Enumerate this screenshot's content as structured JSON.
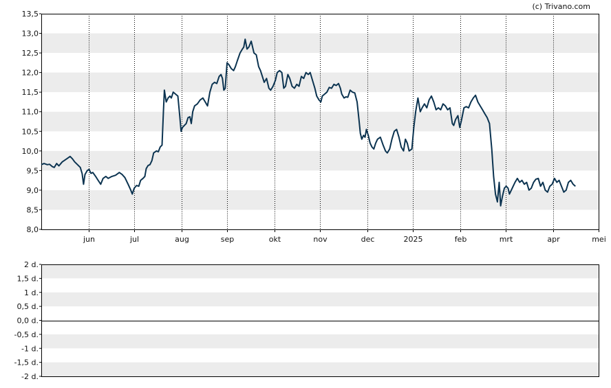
{
  "credit": "(c) Trivano.com",
  "chart_data": [
    {
      "type": "line",
      "title": "",
      "xlabel": "",
      "ylabel": "",
      "ylim": [
        8.0,
        13.5
      ],
      "y_ticks": [
        "8,0",
        "8,5",
        "9,0",
        "9,5",
        "10,0",
        "10,5",
        "11,0",
        "11,5",
        "12,0",
        "12,5",
        "13,0",
        "13,5"
      ],
      "x_ticks": [
        "jun",
        "jul",
        "aug",
        "sep",
        "okt",
        "nov",
        "dec",
        "2025",
        "feb",
        "mrt",
        "apr",
        "mei"
      ],
      "x_ticks_pos": [
        6.02,
        7.0,
        8.02,
        9.0,
        10.02,
        11.0,
        12.02,
        13.0,
        14.02,
        15.0,
        16.02,
        17.0
      ],
      "xlim": [
        5.0,
        17.0
      ],
      "grid": "alternating horizontal bands, dotted vertical lines at month ticks",
      "line_color": "#0b3350",
      "series": [
        {
          "values": [
            [
              5.0,
              9.65
            ],
            [
              5.06,
              9.68
            ],
            [
              5.13,
              9.65
            ],
            [
              5.18,
              9.66
            ],
            [
              5.24,
              9.6
            ],
            [
              5.28,
              9.58
            ],
            [
              5.33,
              9.68
            ],
            [
              5.38,
              9.62
            ],
            [
              5.45,
              9.72
            ],
            [
              5.55,
              9.8
            ],
            [
              5.62,
              9.86
            ],
            [
              5.67,
              9.8
            ],
            [
              5.72,
              9.72
            ],
            [
              5.78,
              9.65
            ],
            [
              5.84,
              9.58
            ],
            [
              5.88,
              9.42
            ],
            [
              5.91,
              9.15
            ],
            [
              5.94,
              9.4
            ],
            [
              5.99,
              9.5
            ],
            [
              6.03,
              9.53
            ],
            [
              6.07,
              9.43
            ],
            [
              6.11,
              9.45
            ],
            [
              6.17,
              9.35
            ],
            [
              6.22,
              9.26
            ],
            [
              6.28,
              9.15
            ],
            [
              6.33,
              9.3
            ],
            [
              6.39,
              9.35
            ],
            [
              6.44,
              9.3
            ],
            [
              6.52,
              9.35
            ],
            [
              6.6,
              9.38
            ],
            [
              6.68,
              9.45
            ],
            [
              6.74,
              9.4
            ],
            [
              6.8,
              9.32
            ],
            [
              6.87,
              9.15
            ],
            [
              6.92,
              9.02
            ],
            [
              6.96,
              8.9
            ],
            [
              7.0,
              9.05
            ],
            [
              7.05,
              9.12
            ],
            [
              7.1,
              9.1
            ],
            [
              7.14,
              9.25
            ],
            [
              7.19,
              9.3
            ],
            [
              7.23,
              9.35
            ],
            [
              7.26,
              9.55
            ],
            [
              7.3,
              9.63
            ],
            [
              7.34,
              9.65
            ],
            [
              7.38,
              9.75
            ],
            [
              7.42,
              9.95
            ],
            [
              7.48,
              10.0
            ],
            [
              7.52,
              9.98
            ],
            [
              7.56,
              10.1
            ],
            [
              7.6,
              10.15
            ],
            [
              7.63,
              11.0
            ],
            [
              7.65,
              11.55
            ],
            [
              7.69,
              11.25
            ],
            [
              7.73,
              11.35
            ],
            [
              7.77,
              11.4
            ],
            [
              7.8,
              11.35
            ],
            [
              7.84,
              11.5
            ],
            [
              7.89,
              11.45
            ],
            [
              7.94,
              11.4
            ],
            [
              7.98,
              10.9
            ],
            [
              8.01,
              10.5
            ],
            [
              8.04,
              10.6
            ],
            [
              8.08,
              10.65
            ],
            [
              8.12,
              10.7
            ],
            [
              8.16,
              10.85
            ],
            [
              8.2,
              10.87
            ],
            [
              8.23,
              10.7
            ],
            [
              8.26,
              11.0
            ],
            [
              8.3,
              11.15
            ],
            [
              8.36,
              11.2
            ],
            [
              8.42,
              11.3
            ],
            [
              8.48,
              11.35
            ],
            [
              8.53,
              11.25
            ],
            [
              8.58,
              11.15
            ],
            [
              8.63,
              11.5
            ],
            [
              8.68,
              11.7
            ],
            [
              8.73,
              11.75
            ],
            [
              8.78,
              11.72
            ],
            [
              8.83,
              11.9
            ],
            [
              8.87,
              11.95
            ],
            [
              8.9,
              11.85
            ],
            [
              8.93,
              11.55
            ],
            [
              8.96,
              11.6
            ],
            [
              9.0,
              12.25
            ],
            [
              9.04,
              12.2
            ],
            [
              9.09,
              12.1
            ],
            [
              9.14,
              12.05
            ],
            [
              9.18,
              12.15
            ],
            [
              9.22,
              12.3
            ],
            [
              9.28,
              12.5
            ],
            [
              9.33,
              12.6
            ],
            [
              9.36,
              12.65
            ],
            [
              9.39,
              12.85
            ],
            [
              9.43,
              12.6
            ],
            [
              9.47,
              12.65
            ],
            [
              9.52,
              12.8
            ],
            [
              9.58,
              12.5
            ],
            [
              9.63,
              12.45
            ],
            [
              9.68,
              12.15
            ],
            [
              9.72,
              12.05
            ],
            [
              9.76,
              11.9
            ],
            [
              9.8,
              11.75
            ],
            [
              9.85,
              11.85
            ],
            [
              9.9,
              11.6
            ],
            [
              9.94,
              11.55
            ],
            [
              9.99,
              11.65
            ],
            [
              10.04,
              11.8
            ],
            [
              10.08,
              12.0
            ],
            [
              10.13,
              12.05
            ],
            [
              10.18,
              12.0
            ],
            [
              10.22,
              11.6
            ],
            [
              10.26,
              11.65
            ],
            [
              10.31,
              11.95
            ],
            [
              10.35,
              11.85
            ],
            [
              10.4,
              11.65
            ],
            [
              10.45,
              11.6
            ],
            [
              10.5,
              11.7
            ],
            [
              10.55,
              11.65
            ],
            [
              10.6,
              11.9
            ],
            [
              10.65,
              11.85
            ],
            [
              10.7,
              12.0
            ],
            [
              10.75,
              11.95
            ],
            [
              10.79,
              12.0
            ],
            [
              10.84,
              11.8
            ],
            [
              10.89,
              11.6
            ],
            [
              10.93,
              11.4
            ],
            [
              10.98,
              11.3
            ],
            [
              11.02,
              11.25
            ],
            [
              11.05,
              11.4
            ],
            [
              11.1,
              11.45
            ],
            [
              11.15,
              11.5
            ],
            [
              11.2,
              11.62
            ],
            [
              11.25,
              11.6
            ],
            [
              11.3,
              11.7
            ],
            [
              11.35,
              11.67
            ],
            [
              11.4,
              11.72
            ],
            [
              11.44,
              11.6
            ],
            [
              11.47,
              11.45
            ],
            [
              11.52,
              11.35
            ],
            [
              11.56,
              11.38
            ],
            [
              11.6,
              11.37
            ],
            [
              11.65,
              11.55
            ],
            [
              11.7,
              11.5
            ],
            [
              11.75,
              11.48
            ],
            [
              11.8,
              11.25
            ],
            [
              11.84,
              10.8
            ],
            [
              11.87,
              10.45
            ],
            [
              11.9,
              10.3
            ],
            [
              11.94,
              10.4
            ],
            [
              11.97,
              10.35
            ],
            [
              12.0,
              10.55
            ],
            [
              12.04,
              10.4
            ],
            [
              12.08,
              10.2
            ],
            [
              12.12,
              10.1
            ],
            [
              12.16,
              10.05
            ],
            [
              12.2,
              10.2
            ],
            [
              12.24,
              10.3
            ],
            [
              12.3,
              10.35
            ],
            [
              12.36,
              10.15
            ],
            [
              12.41,
              10.0
            ],
            [
              12.45,
              9.95
            ],
            [
              12.5,
              10.05
            ],
            [
              12.55,
              10.3
            ],
            [
              12.6,
              10.5
            ],
            [
              12.65,
              10.55
            ],
            [
              12.7,
              10.35
            ],
            [
              12.75,
              10.1
            ],
            [
              12.8,
              10.0
            ],
            [
              12.84,
              10.3
            ],
            [
              12.88,
              10.2
            ],
            [
              12.92,
              10.0
            ],
            [
              12.98,
              10.05
            ],
            [
              13.02,
              10.6
            ],
            [
              13.06,
              11.0
            ],
            [
              13.11,
              11.35
            ],
            [
              13.16,
              11.0
            ],
            [
              13.2,
              11.1
            ],
            [
              13.25,
              11.2
            ],
            [
              13.3,
              11.1
            ],
            [
              13.35,
              11.3
            ],
            [
              13.4,
              11.4
            ],
            [
              13.45,
              11.25
            ],
            [
              13.5,
              11.05
            ],
            [
              13.55,
              11.1
            ],
            [
              13.6,
              11.05
            ],
            [
              13.65,
              11.2
            ],
            [
              13.7,
              11.15
            ],
            [
              13.75,
              11.05
            ],
            [
              13.8,
              11.1
            ],
            [
              13.85,
              10.7
            ],
            [
              13.88,
              10.65
            ],
            [
              13.92,
              10.8
            ],
            [
              13.97,
              10.9
            ],
            [
              14.01,
              10.6
            ],
            [
              14.05,
              10.8
            ],
            [
              14.1,
              11.1
            ],
            [
              14.15,
              11.13
            ],
            [
              14.2,
              11.1
            ],
            [
              14.25,
              11.25
            ],
            [
              14.3,
              11.35
            ],
            [
              14.35,
              11.42
            ],
            [
              14.4,
              11.25
            ],
            [
              14.45,
              11.15
            ],
            [
              14.5,
              11.05
            ],
            [
              14.55,
              10.95
            ],
            [
              14.6,
              10.85
            ],
            [
              14.65,
              10.7
            ],
            [
              14.7,
              10.05
            ],
            [
              14.74,
              9.35
            ],
            [
              14.78,
              8.9
            ],
            [
              14.82,
              8.7
            ],
            [
              14.86,
              9.2
            ],
            [
              14.89,
              8.6
            ],
            [
              14.93,
              8.85
            ],
            [
              14.97,
              9.05
            ],
            [
              15.01,
              9.1
            ],
            [
              15.05,
              9.05
            ],
            [
              15.08,
              8.9
            ],
            [
              15.12,
              9.0
            ],
            [
              15.16,
              9.1
            ],
            [
              15.2,
              9.2
            ],
            [
              15.25,
              9.3
            ],
            [
              15.3,
              9.2
            ],
            [
              15.35,
              9.25
            ],
            [
              15.4,
              9.15
            ],
            [
              15.45,
              9.2
            ],
            [
              15.5,
              9.0
            ],
            [
              15.55,
              9.05
            ],
            [
              15.6,
              9.2
            ],
            [
              15.65,
              9.28
            ],
            [
              15.7,
              9.3
            ],
            [
              15.75,
              9.1
            ],
            [
              15.8,
              9.2
            ],
            [
              15.85,
              9.0
            ],
            [
              15.9,
              8.95
            ],
            [
              15.95,
              9.1
            ],
            [
              16.0,
              9.15
            ],
            [
              16.05,
              9.3
            ],
            [
              16.1,
              9.2
            ],
            [
              16.15,
              9.25
            ],
            [
              16.2,
              9.1
            ],
            [
              16.25,
              8.95
            ],
            [
              16.3,
              9.0
            ],
            [
              16.35,
              9.2
            ],
            [
              16.4,
              9.25
            ],
            [
              16.45,
              9.15
            ],
            [
              16.5,
              9.1
            ]
          ]
        }
      ]
    },
    {
      "type": "bar",
      "title": "",
      "xlabel": "",
      "ylabel": "",
      "ylim": [
        -2,
        2
      ],
      "y_ticks": [
        "2 d.",
        "1,5 d.",
        "1 d.",
        "0,5 d.",
        "0,0 d.",
        "-0,5 d.",
        "-1 d.",
        "-1,5 d.",
        "-2 d."
      ],
      "grid": "alternating horizontal bands",
      "series": []
    }
  ]
}
